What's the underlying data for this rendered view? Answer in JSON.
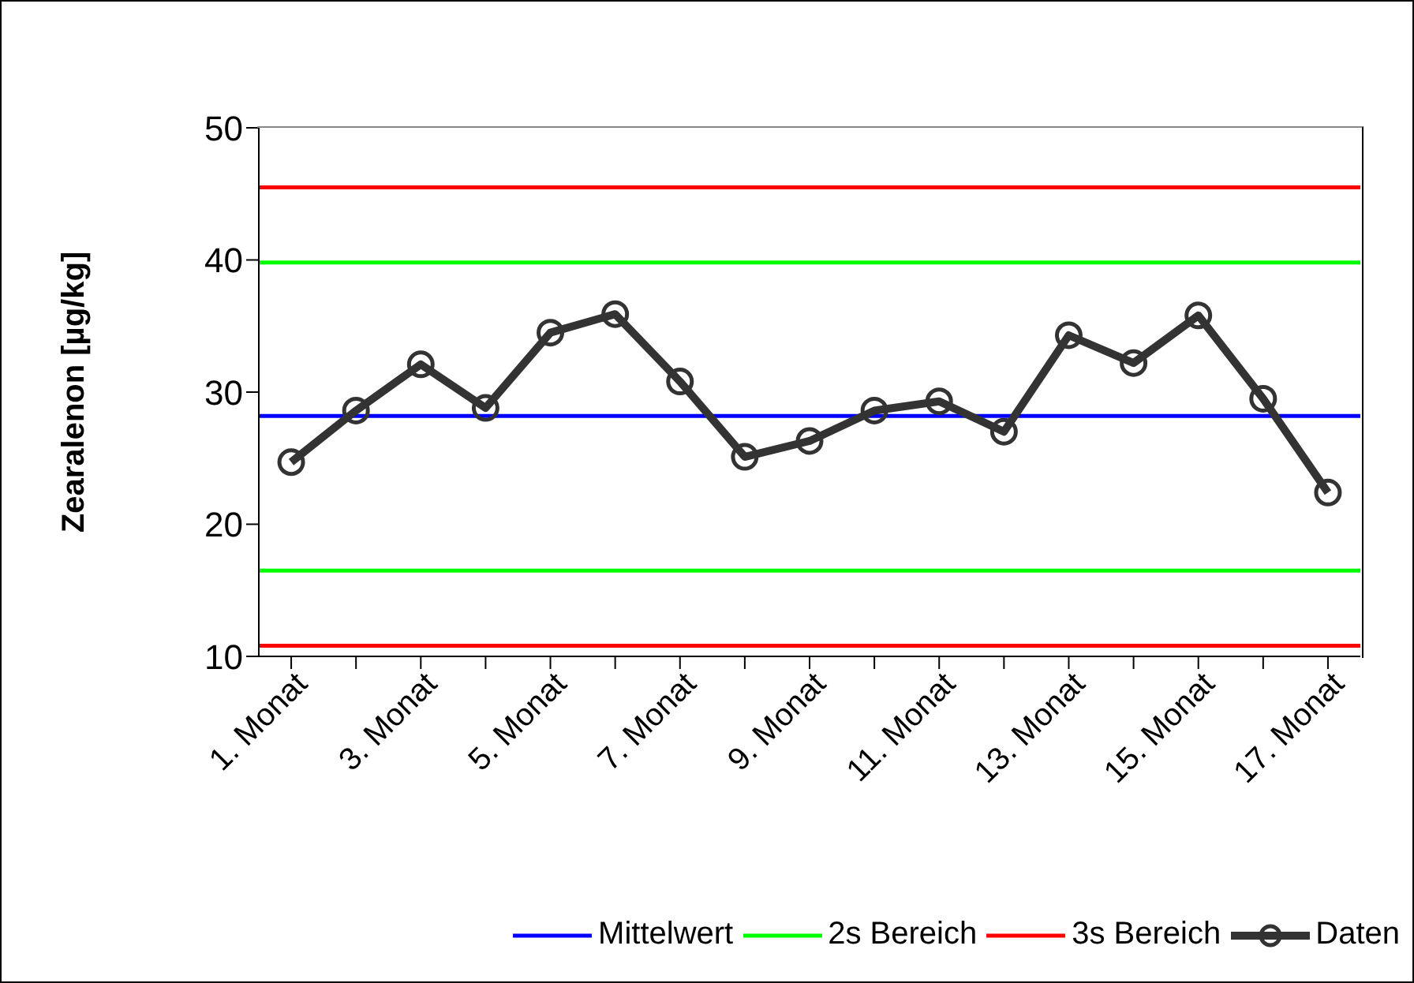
{
  "chart_data": {
    "type": "line",
    "ylabel": "Zearalenon [µg/kg]",
    "categories": [
      "1. Monat",
      null,
      "3. Monat",
      null,
      "5. Monat",
      null,
      "7. Monat",
      null,
      "9. Monat",
      null,
      "11. Monat",
      null,
      "13. Monat",
      null,
      "15. Monat",
      null,
      "17. Monat"
    ],
    "series": [
      {
        "name": "Daten",
        "color": "#333333",
        "values": [
          24.7,
          28.6,
          32.1,
          28.8,
          34.5,
          35.9,
          30.8,
          25.1,
          26.3,
          28.6,
          29.3,
          27.0,
          34.3,
          32.2,
          35.8,
          29.5,
          22.4
        ]
      }
    ],
    "ylim": [
      10,
      50
    ],
    "yticks": [
      10,
      20,
      30,
      40,
      50
    ],
    "grid": false,
    "legend": "bottom",
    "marker": "circle",
    "line_style": "solid",
    "ref_lines": [
      {
        "axis": "y",
        "value": 28.2,
        "label": "Mittelwert",
        "color": "#0000ff"
      },
      {
        "axis": "y",
        "value": 39.8,
        "label": "2s Bereich",
        "color": "#00ff00"
      },
      {
        "axis": "y",
        "value": 16.5,
        "color": "#00ff00"
      },
      {
        "axis": "y",
        "value": 45.5,
        "label": "3s Bereich",
        "color": "#ff0000"
      },
      {
        "axis": "y",
        "value": 10.8,
        "color": "#ff0000"
      }
    ]
  }
}
